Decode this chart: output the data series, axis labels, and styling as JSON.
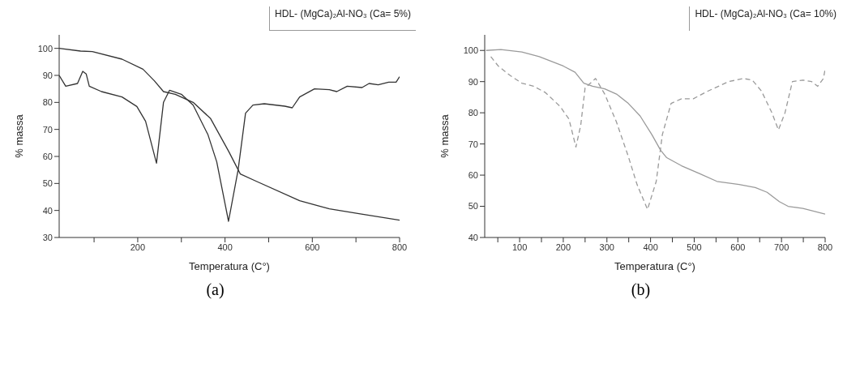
{
  "chart_data": [
    {
      "type": "line",
      "title": "HDL- (MgCa)₂Al-NO₃ (Ca= 5%)",
      "xlabel": "Temperatura (C°)",
      "ylabel": "% massa",
      "annotations": [
        "(a)"
      ],
      "marker": "none",
      "xlim": [
        20,
        800
      ],
      "ylim": [
        30,
        105
      ],
      "xticks": [
        {
          "value": 100,
          "label": null
        },
        200,
        {
          "value": 300,
          "label": null
        },
        400,
        {
          "value": 500,
          "label": null
        },
        600,
        {
          "value": 700,
          "label": null
        },
        800
      ],
      "yticks": [
        30,
        40,
        50,
        60,
        70,
        80,
        90,
        100
      ],
      "series": [
        {
          "color": "#333333",
          "line_style": "solid",
          "x": [
            20,
            69,
            96,
            164,
            212,
            238,
            259,
            286,
            327,
            367,
            408,
            435,
            469,
            571,
            639,
            707,
            800
          ],
          "values": [
            100,
            99,
            98.8,
            96,
            92.3,
            88,
            84,
            83,
            80,
            74,
            62,
            53.5,
            51,
            43.6,
            40.6,
            38.8,
            36.4
          ]
        },
        {
          "color": "#333333",
          "line_style": "solid",
          "x": [
            20,
            35,
            62,
            74,
            82,
            89,
            117,
            164,
            198,
            218,
            243,
            259,
            273,
            300,
            327,
            361,
            381,
            408,
            430,
            447,
            464,
            490,
            537,
            554,
            571,
            605,
            639,
            656,
            680,
            714,
            730,
            751,
            775,
            792,
            800
          ],
          "values": [
            90,
            86,
            87,
            91.5,
            90.5,
            86,
            84,
            82,
            78.5,
            73,
            57.5,
            80,
            84.5,
            83,
            79,
            68,
            58,
            36,
            55,
            76,
            79,
            79.5,
            78.6,
            78,
            82,
            85,
            84.7,
            84,
            86,
            85.5,
            87,
            86.5,
            87.5,
            87.5,
            89.5
          ]
        }
      ]
    },
    {
      "type": "line",
      "title": "HDL- (MgCa)₂Al-NO₃ (Ca= 10%)",
      "xlabel": "Temperatura (C°)",
      "ylabel": "% massa",
      "annotations": [
        "(b)"
      ],
      "marker": "none",
      "xlim": [
        20,
        800
      ],
      "ylim": [
        40,
        105
      ],
      "xticks": [
        {
          "value": 50,
          "label": null
        },
        100,
        {
          "value": 150,
          "label": null
        },
        200,
        {
          "value": 250,
          "label": null
        },
        300,
        {
          "value": 350,
          "label": null
        },
        400,
        {
          "value": 450,
          "label": null
        },
        500,
        {
          "value": 550,
          "label": null
        },
        600,
        {
          "value": 650,
          "label": null
        },
        700,
        {
          "value": 750,
          "label": null
        },
        800
      ],
      "yticks": [
        40,
        50,
        60,
        70,
        80,
        90,
        100
      ],
      "series": [
        {
          "color": "#9a9a9a",
          "line_style": "solid",
          "x": [
            23,
            57,
            105,
            145,
            200,
            227,
            247,
            267,
            295,
            322,
            349,
            376,
            403,
            423,
            437,
            471,
            512,
            552,
            603,
            640,
            667,
            695,
            715,
            749,
            800
          ],
          "values": [
            100,
            100.3,
            99.5,
            98,
            95,
            93,
            89.5,
            88.5,
            87.7,
            86,
            83,
            79,
            73,
            68,
            65.6,
            63,
            60.5,
            58,
            57,
            56,
            54.5,
            51.5,
            50,
            49.3,
            47.5
          ]
        },
        {
          "color": "#9a9a9a",
          "line_style": "dashed",
          "x": [
            34,
            51,
            78,
            105,
            132,
            159,
            193,
            213,
            229,
            240,
            250,
            274,
            295,
            322,
            349,
            369,
            393,
            413,
            427,
            447,
            471,
            498,
            532,
            579,
            613,
            633,
            654,
            678,
            693,
            708,
            725,
            749,
            769,
            783,
            796,
            800
          ],
          "values": [
            98,
            95,
            92,
            89.5,
            88.5,
            86.5,
            82,
            78,
            69,
            76,
            88,
            91,
            86,
            77,
            66,
            57,
            49,
            58,
            73,
            83,
            84.5,
            84.5,
            87,
            90,
            91,
            90.5,
            87,
            80,
            74.5,
            80,
            90,
            90.5,
            90,
            88.5,
            91,
            94
          ]
        }
      ]
    }
  ]
}
